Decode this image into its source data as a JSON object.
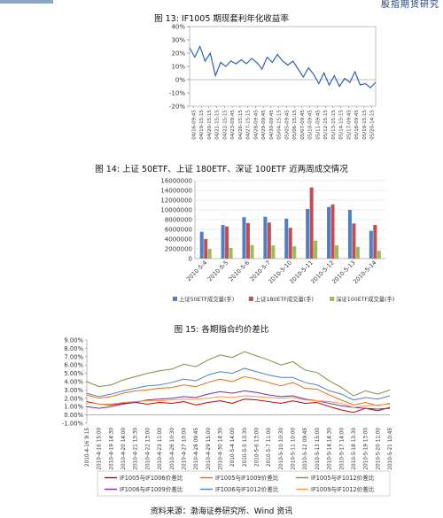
{
  "header": {
    "title_fragment": "股指期货研究"
  },
  "fig13": {
    "title": "图 13: IF1005 期现套利年化收益率",
    "chart_data": {
      "type": "line",
      "ylim": [
        -20,
        40
      ],
      "yticks": [
        "40%",
        "30%",
        "20%",
        "10%",
        "0%",
        "-10%",
        "-20%"
      ],
      "xticks": [
        "04/16-09:45",
        "04/19-15:15",
        "04/20-15:15",
        "04/21-15:15",
        "04/22-15:15",
        "04/23-09:45",
        "04/26-15:15",
        "04/27-15:15",
        "04/28-09:45",
        "04/29-09:45",
        "04/30-09:45",
        "05/04-15:15",
        "05/05-09:45",
        "05/06-15:15",
        "05/07-09:45",
        "05/10-09:45",
        "05/11-09:45",
        "05/12-15:15",
        "05/13-15:15",
        "05/14-15:15",
        "05/17-09:45",
        "05/18-09:45",
        "05/19-15:15",
        "05/20-14:15"
      ],
      "series": [
        {
          "color": "#2a63b0",
          "values": [
            24,
            17,
            25,
            14,
            20,
            3,
            13,
            10,
            14,
            12,
            15,
            12,
            16,
            13,
            8,
            17,
            13,
            19,
            14,
            11,
            14,
            8,
            2,
            9,
            4,
            -3,
            5,
            -4,
            3,
            -5,
            1,
            -2,
            6,
            -4,
            -3,
            -6,
            -2
          ]
        }
      ]
    }
  },
  "fig14": {
    "title": "图 14: 上证 50ETF、上证 180ETF、深证 100ETF 近两周成交情况",
    "chart_data": {
      "type": "bar",
      "categories": [
        "2010-5-4",
        "2010-5-5",
        "2010-5-6",
        "2010-5-7",
        "2010-5-10",
        "2010-5-11",
        "2010-5-12",
        "2010-5-13",
        "2010-5-14"
      ],
      "ylim": [
        0,
        16000000
      ],
      "yticks": [
        "16000000",
        "14000000",
        "12000000",
        "10000000",
        "8000000",
        "6000000",
        "4000000",
        "2000000",
        "0"
      ],
      "series": [
        {
          "name": "上证50ETF成交量(手)",
          "color": "#4f7fc4",
          "values": [
            5500000,
            6900000,
            8500000,
            8600000,
            8200000,
            10200000,
            10600000,
            10000000,
            5700000
          ]
        },
        {
          "name": "上证180ETF成交量(手)",
          "color": "#c0504d",
          "values": [
            4000000,
            6600000,
            7300000,
            7400000,
            6300000,
            14600000,
            11100000,
            7200000,
            6900000
          ]
        },
        {
          "name": "深证100ETF成交量(手)",
          "color": "#9bbb59",
          "values": [
            2000000,
            2200000,
            2800000,
            2700000,
            2500000,
            3700000,
            2700000,
            2400000,
            1600000
          ]
        }
      ]
    }
  },
  "fig15": {
    "title": "图 15: 各期指合约价差比",
    "chart_data": {
      "type": "line",
      "ylim": [
        -1,
        9
      ],
      "yticks": [
        "9.00%",
        "8.00%",
        "7.00%",
        "6.00%",
        "5.00%",
        "4.00%",
        "3.00%",
        "2.00%",
        "1.00%",
        "0.00%",
        "-1.00%"
      ],
      "xticks": [
        "2010-4-16 9:15",
        "2010-4-16 15:00",
        "2010-4-19 14:30",
        "2010-4-20 14:00",
        "2010-4-21 13:30",
        "2010-4-22 13:00",
        "2010-4-23 11:00",
        "2010-4-26 10:30",
        "2010-4-27 10:00",
        "2010-4-28 09:45",
        "2010-4-29 15:00",
        "2010-4-30 14:30",
        "2010-5-4 14:00",
        "2010-5-5 13:30",
        "2010-5-6 13:00",
        "2010-5-7 11:00",
        "2010-5-10 10:30",
        "2010-5-11 10:00",
        "2010-5-12 09:45",
        "2010-5-13 15:00",
        "2010-5-14 14:30",
        "2010-5-17 14:00",
        "2010-5-18 13:30",
        "2010-5-19 13:00",
        "2010-5-20 11:00",
        "2010-5-21 10:45"
      ],
      "series": [
        {
          "name": "IF1005与IF1006价差比",
          "color": "#c00000",
          "values": [
            1.6,
            1.3,
            1.2,
            1.4,
            1.5,
            1.3,
            1.5,
            1.4,
            1.6,
            1.2,
            1.5,
            1.7,
            1.4,
            1.9,
            1.8,
            1.6,
            1.4,
            1.7,
            1.4,
            1.5,
            1.0,
            0.6,
            0.3,
            0.8,
            0.5,
            0.9
          ]
        },
        {
          "name": "IF1005与IF1009价差比",
          "color": "#e46c0a",
          "values": [
            2.4,
            2.0,
            2.2,
            2.6,
            2.9,
            3.0,
            3.2,
            3.3,
            3.6,
            3.4,
            3.9,
            4.3,
            4.0,
            4.6,
            4.3,
            3.9,
            3.5,
            3.9,
            3.2,
            3.1,
            2.4,
            1.8,
            1.2,
            1.5,
            1.1,
            1.4
          ]
        },
        {
          "name": "IF1005与IF1012价差比",
          "color": "#77933c",
          "values": [
            4.0,
            3.4,
            3.6,
            4.2,
            4.6,
            5.0,
            5.3,
            5.5,
            6.1,
            5.8,
            6.6,
            7.2,
            6.9,
            7.6,
            7.1,
            6.6,
            6.0,
            6.4,
            5.4,
            5.1,
            4.1,
            3.3,
            2.3,
            2.9,
            2.5,
            3.0
          ]
        },
        {
          "name": "IF1006与IF1009价差比",
          "color": "#7030a0",
          "values": [
            1.0,
            0.8,
            1.0,
            1.3,
            1.5,
            1.8,
            1.9,
            2.0,
            2.2,
            2.1,
            2.5,
            2.8,
            2.6,
            2.9,
            2.7,
            2.4,
            2.2,
            2.3,
            1.9,
            1.7,
            1.4,
            1.1,
            0.9,
            0.8,
            0.7,
            0.8
          ]
        },
        {
          "name": "IF1006与IF1012价差比",
          "color": "#4f81bd",
          "values": [
            2.6,
            2.2,
            2.5,
            2.9,
            3.2,
            3.5,
            3.6,
            3.9,
            4.3,
            4.1,
            4.8,
            5.2,
            5.0,
            5.6,
            5.2,
            4.8,
            4.5,
            4.5,
            3.9,
            3.6,
            2.9,
            2.5,
            1.8,
            2.1,
            1.9,
            2.3
          ]
        },
        {
          "name": "IF1009与IF1012价差比",
          "color": "#f79646",
          "values": [
            1.5,
            1.3,
            1.3,
            1.5,
            1.6,
            1.7,
            1.7,
            1.8,
            1.9,
            1.9,
            2.0,
            2.2,
            2.1,
            2.3,
            2.2,
            2.1,
            2.0,
            2.1,
            1.8,
            1.7,
            1.6,
            1.4,
            0.9,
            1.1,
            1.2,
            1.3
          ]
        }
      ]
    }
  },
  "source": "资料来源：渤海证券研究所、Wind 资讯"
}
